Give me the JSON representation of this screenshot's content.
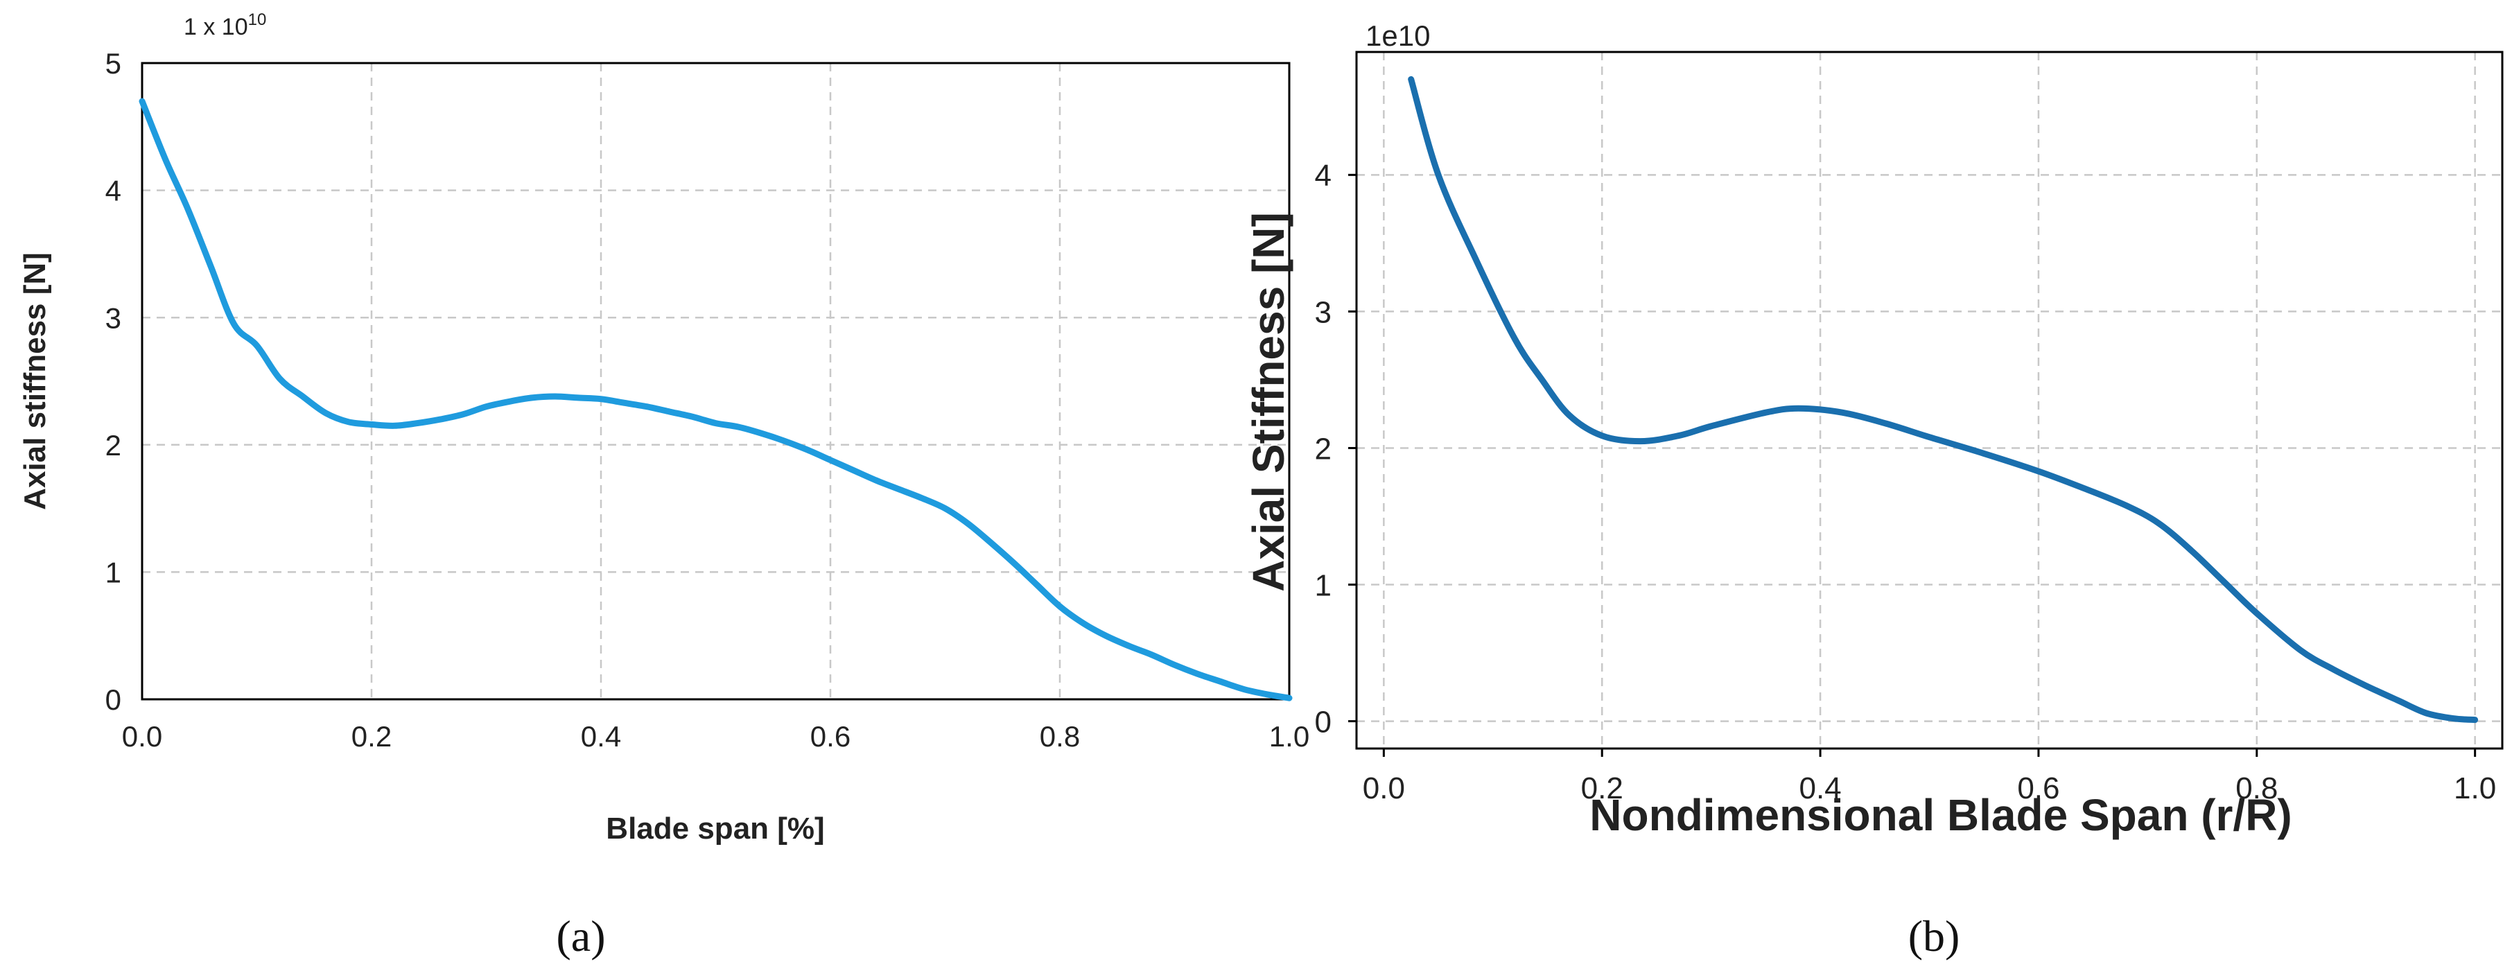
{
  "chart_data": [
    {
      "type": "line",
      "panel_label": "(a)",
      "exponent_label": "1 x 10",
      "exponent_power": "10",
      "xlabel": "Blade span [%]",
      "ylabel": "Axial stiffness [N]",
      "xlim": [
        0,
        1
      ],
      "ylim": [
        0,
        5
      ],
      "x_ticks": [
        0.0,
        0.2,
        0.4,
        0.6,
        0.8,
        1.0
      ],
      "x_tick_labels": [
        "0.0",
        "0.2",
        "0.4",
        "0.6",
        "0.8",
        "1.0"
      ],
      "y_ticks": [
        0,
        1,
        2,
        3,
        4,
        5
      ],
      "y_tick_labels": [
        "0",
        "1",
        "2",
        "3",
        "4",
        "5"
      ],
      "grid": true,
      "series": [
        {
          "color": "#1f9bde",
          "x": [
            0.0,
            0.02,
            0.04,
            0.06,
            0.08,
            0.1,
            0.12,
            0.14,
            0.16,
            0.18,
            0.2,
            0.22,
            0.24,
            0.26,
            0.28,
            0.3,
            0.32,
            0.34,
            0.36,
            0.38,
            0.4,
            0.42,
            0.44,
            0.46,
            0.48,
            0.5,
            0.52,
            0.54,
            0.56,
            0.58,
            0.6,
            0.62,
            0.64,
            0.66,
            0.68,
            0.7,
            0.72,
            0.74,
            0.76,
            0.78,
            0.8,
            0.82,
            0.84,
            0.86,
            0.88,
            0.9,
            0.92,
            0.94,
            0.96,
            0.98,
            1.0
          ],
          "y": [
            4.7,
            4.25,
            3.85,
            3.4,
            2.95,
            2.78,
            2.52,
            2.38,
            2.25,
            2.18,
            2.16,
            2.15,
            2.17,
            2.2,
            2.24,
            2.3,
            2.34,
            2.37,
            2.38,
            2.37,
            2.36,
            2.33,
            2.3,
            2.26,
            2.22,
            2.17,
            2.14,
            2.09,
            2.03,
            1.96,
            1.88,
            1.8,
            1.72,
            1.65,
            1.58,
            1.5,
            1.38,
            1.23,
            1.07,
            0.9,
            0.73,
            0.6,
            0.5,
            0.42,
            0.35,
            0.27,
            0.2,
            0.14,
            0.08,
            0.04,
            0.01
          ]
        }
      ]
    },
    {
      "type": "line",
      "panel_label": "(b)",
      "exponent_label": "1e10",
      "xlabel": "Nondimensional Blade Span (r/R)",
      "ylabel": "Axial Stiffness [N]",
      "xlim": [
        -0.025,
        1.025
      ],
      "ylim": [
        -0.2,
        4.9
      ],
      "x_ticks": [
        0.0,
        0.2,
        0.4,
        0.6,
        0.8,
        1.0
      ],
      "x_tick_labels": [
        "0.0",
        "0.2",
        "0.4",
        "0.6",
        "0.8",
        "1.0"
      ],
      "y_ticks": [
        0,
        1,
        2,
        3,
        4
      ],
      "y_tick_labels": [
        "0",
        "1",
        "2",
        "3",
        "4"
      ],
      "grid": true,
      "series": [
        {
          "color": "#1a6fae",
          "x": [
            0.025,
            0.05,
            0.085,
            0.12,
            0.145,
            0.17,
            0.2,
            0.235,
            0.27,
            0.3,
            0.35,
            0.38,
            0.42,
            0.46,
            0.5,
            0.55,
            0.6,
            0.64,
            0.68,
            0.71,
            0.74,
            0.77,
            0.8,
            0.84,
            0.87,
            0.9,
            0.93,
            0.955,
            0.98,
            1.0
          ],
          "y": [
            4.7,
            4.0,
            3.37,
            2.8,
            2.5,
            2.24,
            2.09,
            2.05,
            2.09,
            2.16,
            2.26,
            2.29,
            2.26,
            2.18,
            2.08,
            1.96,
            1.83,
            1.71,
            1.58,
            1.45,
            1.25,
            1.02,
            0.79,
            0.52,
            0.38,
            0.26,
            0.15,
            0.06,
            0.02,
            0.01
          ]
        }
      ]
    }
  ]
}
